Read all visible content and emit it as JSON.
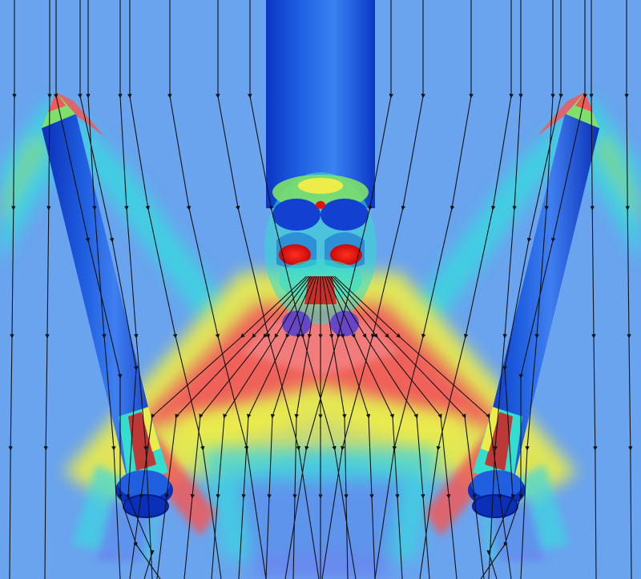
{
  "scene": {
    "subject": "",
    "colors": {
      "freestream": "#6aa3ee",
      "body_dark": "#0a2fb8",
      "body_mid": "#1f5fe0",
      "body_light": "#4a90f0",
      "cyan": "#33ddd0",
      "green": "#7ee06a",
      "yellow": "#ecec4a",
      "orange": "#f4a040",
      "red": "#f05a5a",
      "deep_red": "#e01010",
      "streamline": "#111111"
    },
    "parts": [
      {
        "name": "center-core-cylinder"
      },
      {
        "name": "left-booster"
      },
      {
        "name": "right-booster"
      },
      {
        "name": "core-nozzle-cluster"
      },
      {
        "name": "shock-cone"
      },
      {
        "name": "streamlines"
      }
    ]
  }
}
